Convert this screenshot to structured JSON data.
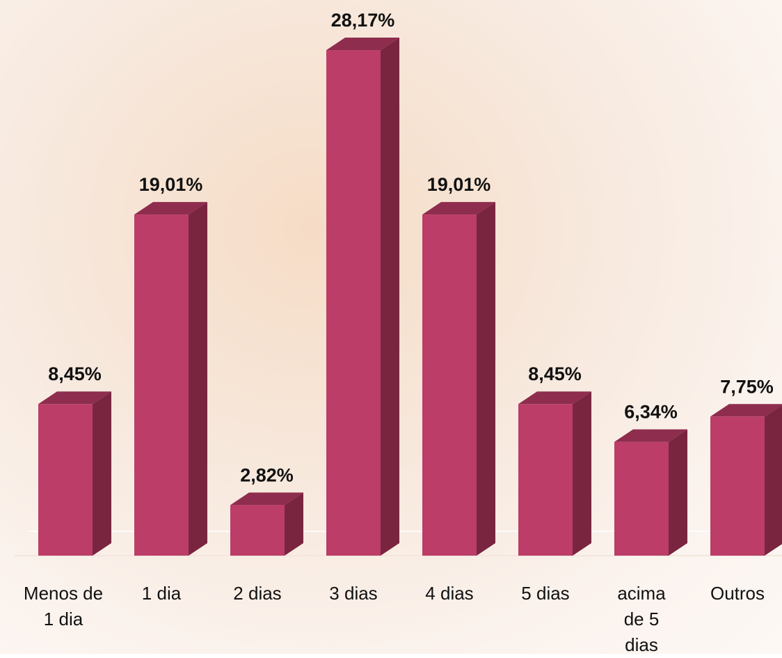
{
  "chart_data": {
    "type": "bar3d",
    "categories": [
      "Menos de 1 dia",
      "1 dia",
      "2 dias",
      "3 dias",
      "4 dias",
      "5 dias",
      "acima de 5 dias",
      "Outros"
    ],
    "values": [
      8.45,
      19.01,
      2.82,
      28.17,
      19.01,
      8.45,
      6.34,
      7.75
    ],
    "value_labels": [
      "8,45%",
      "19,01%",
      "2,82%",
      "28,17%",
      "19,01%",
      "8,45%",
      "6,34%",
      "7,75%"
    ],
    "color": "#bb3d68"
  }
}
